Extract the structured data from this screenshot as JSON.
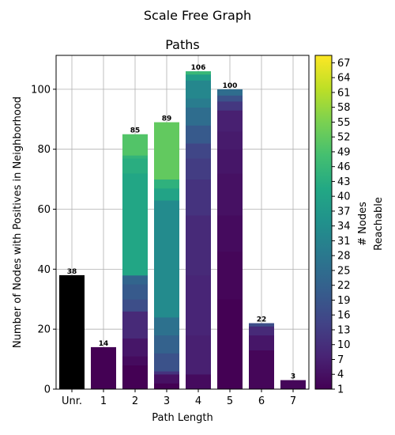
{
  "chart_data": {
    "type": "bar",
    "suptitle": "Scale Free Graph",
    "title": "Paths",
    "xlabel": "Path Length",
    "ylabel": "Number of Nodes with Positives in Neighborhood",
    "categories": [
      "Unr.",
      "1",
      "2",
      "3",
      "4",
      "5",
      "6",
      "7"
    ],
    "values": [
      38,
      14,
      85,
      89,
      106,
      100,
      22,
      3
    ],
    "value_labels": [
      "38",
      "14",
      "85",
      "89",
      "106",
      "100",
      "22",
      "3"
    ],
    "ylim": [
      0,
      111.3
    ],
    "yticks": [
      0,
      20,
      40,
      60,
      80,
      100
    ],
    "grid": true,
    "colormap": "viridis",
    "unreachable_color": "#000000",
    "stacks": [
      [],
      [
        [
          0,
          14,
          1
        ]
      ],
      [
        [
          0,
          8,
          1
        ],
        [
          8,
          11,
          3
        ],
        [
          11,
          17,
          5
        ],
        [
          17,
          26,
          9
        ],
        [
          26,
          30,
          17
        ],
        [
          30,
          35,
          20
        ],
        [
          35,
          38,
          23
        ],
        [
          38,
          72,
          41
        ],
        [
          72,
          77,
          43
        ],
        [
          77,
          78,
          45
        ],
        [
          78,
          85,
          50
        ]
      ],
      [
        [
          0,
          2,
          1
        ],
        [
          2,
          5,
          4
        ],
        [
          5,
          6,
          11
        ],
        [
          6,
          12,
          18
        ],
        [
          12,
          18,
          22
        ],
        [
          18,
          24,
          26
        ],
        [
          24,
          63,
          33
        ],
        [
          63,
          67,
          40
        ],
        [
          67,
          70,
          44
        ],
        [
          70,
          89,
          52
        ]
      ],
      [
        [
          0,
          5,
          3
        ],
        [
          5,
          18,
          7
        ],
        [
          18,
          38,
          8
        ],
        [
          38,
          58,
          9
        ],
        [
          58,
          70,
          11
        ],
        [
          70,
          77,
          13
        ],
        [
          77,
          82,
          15
        ],
        [
          82,
          88,
          20
        ],
        [
          88,
          94,
          25
        ],
        [
          94,
          97,
          29
        ],
        [
          97,
          103,
          32
        ],
        [
          103,
          105,
          38
        ],
        [
          105,
          106,
          46
        ]
      ],
      [
        [
          0,
          30,
          1
        ],
        [
          30,
          46,
          2
        ],
        [
          46,
          58,
          3
        ],
        [
          58,
          72,
          4
        ],
        [
          72,
          80,
          5
        ],
        [
          80,
          86,
          6
        ],
        [
          86,
          93,
          7
        ],
        [
          93,
          96,
          12
        ],
        [
          96,
          98,
          18
        ],
        [
          98,
          100,
          25
        ]
      ],
      [
        [
          0,
          13,
          2
        ],
        [
          13,
          18,
          5
        ],
        [
          18,
          21,
          9
        ],
        [
          21,
          22,
          17
        ]
      ],
      [
        [
          0,
          3,
          2
        ]
      ]
    ],
    "colorbar": {
      "label": "# Nodes\nReachable",
      "label_lines": [
        "# Nodes",
        "Reachable"
      ],
      "min": 1,
      "max": 68.5,
      "ticks": [
        1,
        4,
        7,
        10,
        13,
        16,
        19,
        22,
        25,
        28,
        31,
        34,
        37,
        40,
        43,
        46,
        49,
        52,
        55,
        58,
        61,
        64,
        67
      ]
    }
  }
}
